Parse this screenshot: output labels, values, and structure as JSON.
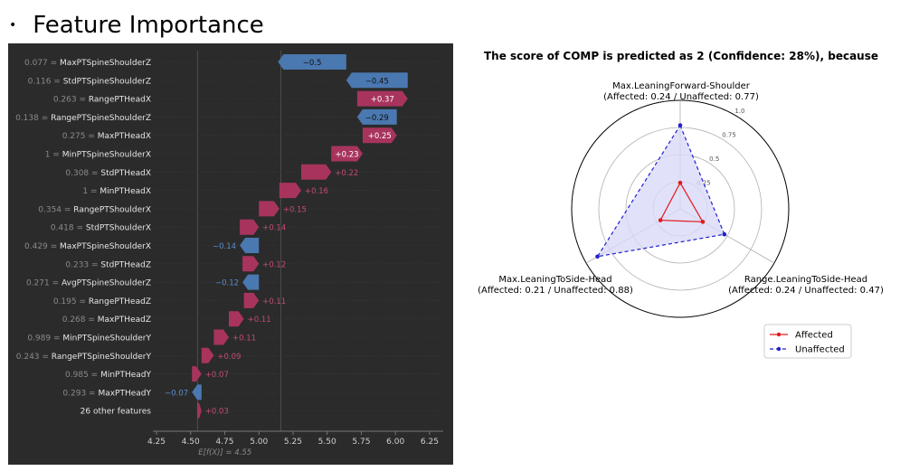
{
  "slide": {
    "bullet": "•",
    "title": "Feature Importance"
  },
  "waterfall": {
    "chart_data": {
      "type": "bar",
      "subtype": "shap-waterfall",
      "base_value_label": "E[f(X)] = 4.55",
      "base_value": 4.55,
      "final_value": 5.16,
      "xlim": [
        4.25,
        6.35
      ],
      "xticks": [
        4.25,
        4.5,
        4.75,
        5.0,
        5.25,
        5.5,
        5.75,
        6.0,
        6.25
      ],
      "xtick_labels": [
        "4.25",
        "4.50",
        "4.75",
        "5.00",
        "5.25",
        "5.50",
        "5.75",
        "6.00",
        "6.25"
      ],
      "positive_color": "#a8345e",
      "negative_color": "#4a78b0",
      "features": [
        {
          "label": "0.077 = MaxPTSpineShoulderZ",
          "value_text": "0.077",
          "name": "MaxPTSpineShoulderZ",
          "shap": -0.5,
          "shap_label": "−0.5"
        },
        {
          "label": "0.116 = StdPTSpineShoulderZ",
          "value_text": "0.116",
          "name": "StdPTSpineShoulderZ",
          "shap": -0.45,
          "shap_label": "−0.45"
        },
        {
          "label": "0.263 = RangePTHeadX",
          "value_text": "0.263",
          "name": "RangePTHeadX",
          "shap": 0.37,
          "shap_label": "+0.37"
        },
        {
          "label": "0.138 = RangePTSpineShoulderZ",
          "value_text": "0.138",
          "name": "RangePTSpineShoulderZ",
          "shap": -0.29,
          "shap_label": "−0.29"
        },
        {
          "label": "0.275 = MaxPTHeadX",
          "value_text": "0.275",
          "name": "MaxPTHeadX",
          "shap": 0.25,
          "shap_label": "+0.25"
        },
        {
          "label": "1 = MinPTSpineShoulderX",
          "value_text": "1",
          "name": "MinPTSpineShoulderX",
          "shap": 0.23,
          "shap_label": "+0.23"
        },
        {
          "label": "0.308 = StdPTHeadX",
          "value_text": "0.308",
          "name": "StdPTHeadX",
          "shap": 0.22,
          "shap_label": "+0.22"
        },
        {
          "label": "1 = MinPTHeadX",
          "value_text": "1",
          "name": "MinPTHeadX",
          "shap": 0.16,
          "shap_label": "+0.16"
        },
        {
          "label": "0.354 = RangePTShoulderX",
          "value_text": "0.354",
          "name": "RangePTShoulderX",
          "shap": 0.15,
          "shap_label": "+0.15"
        },
        {
          "label": "0.418 = StdPTShoulderX",
          "value_text": "0.418",
          "name": "StdPTShoulderX",
          "shap": 0.14,
          "shap_label": "+0.14"
        },
        {
          "label": "0.429 = MaxPTSpineShoulderX",
          "value_text": "0.429",
          "name": "MaxPTSpineShoulderX",
          "shap": -0.14,
          "shap_label": "−0.14"
        },
        {
          "label": "0.233 = StdPTHeadZ",
          "value_text": "0.233",
          "name": "StdPTHeadZ",
          "shap": 0.12,
          "shap_label": "+0.12"
        },
        {
          "label": "0.271 = AvgPTSpineShoulderZ",
          "value_text": "0.271",
          "name": "AvgPTSpineShoulderZ",
          "shap": -0.12,
          "shap_label": "−0.12"
        },
        {
          "label": "0.195 = RangePTHeadZ",
          "value_text": "0.195",
          "name": "RangePTHeadZ",
          "shap": 0.11,
          "shap_label": "+0.11"
        },
        {
          "label": "0.268 = MaxPTHeadZ",
          "value_text": "0.268",
          "name": "MaxPTHeadZ",
          "shap": 0.11,
          "shap_label": "+0.11"
        },
        {
          "label": "0.989 = MinPTSpineShoulderY",
          "value_text": "0.989",
          "name": "MinPTSpineShoulderY",
          "shap": 0.11,
          "shap_label": "+0.11"
        },
        {
          "label": "0.243 = RangePTSpineShoulderY",
          "value_text": "0.243",
          "name": "RangePTSpineShoulderY",
          "shap": 0.09,
          "shap_label": "+0.09"
        },
        {
          "label": "0.985 = MinPTHeadY",
          "value_text": "0.985",
          "name": "MinPTHeadY",
          "shap": 0.07,
          "shap_label": "+0.07"
        },
        {
          "label": "0.293 = MaxPTHeadY",
          "value_text": "0.293",
          "name": "MaxPTHeadY",
          "shap": -0.07,
          "shap_label": "−0.07"
        },
        {
          "label": "26 other features",
          "value_text": "",
          "name": "26 other features",
          "shap": 0.03,
          "shap_label": "+0.03"
        }
      ]
    }
  },
  "radar": {
    "chart_data": {
      "type": "radar",
      "title": "The score of COMP is predicted as 2 (Confidence: 28%), because",
      "axes": [
        {
          "name": "Max.LeaningForward-Shoulder",
          "detail": "(Affected: 0.24 / Unaffected: 0.77)"
        },
        {
          "name": "Range.LeaningToSide-Head",
          "detail": "(Affected: 0.24 / Unaffected: 0.47)"
        },
        {
          "name": "Max.LeaningToSide-Head",
          "detail": "(Affected: 0.21 / Unaffected: 0.88)"
        }
      ],
      "rlim": [
        0,
        1.0
      ],
      "rticks": [
        0.25,
        0.5,
        0.75,
        1.0
      ],
      "rtick_labels": [
        "0.25",
        "0.5",
        "0.75",
        "1.0"
      ],
      "series": [
        {
          "name": "Affected",
          "values": [
            0.24,
            0.24,
            0.21
          ],
          "color": "#e31a1c",
          "linestyle": "solid"
        },
        {
          "name": "Unaffected",
          "values": [
            0.77,
            0.47,
            0.88
          ],
          "color": "#2020d0",
          "linestyle": "dashed",
          "fill": "#d9d9f7"
        }
      ],
      "legend_position": "lower-right"
    }
  }
}
